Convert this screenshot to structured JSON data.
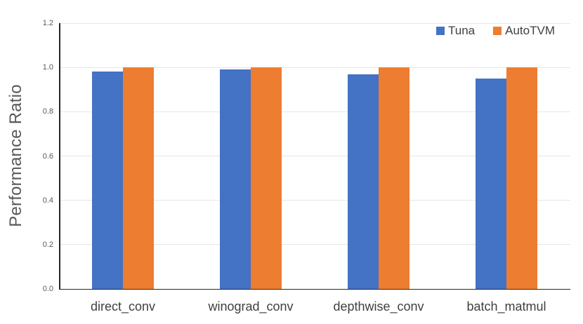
{
  "chart_data": {
    "type": "bar",
    "categories": [
      "direct_conv",
      "winograd_conv",
      "depthwise_conv",
      "batch_matmul"
    ],
    "series": [
      {
        "name": "Tuna",
        "color": "#4472C4",
        "values": [
          0.98,
          0.99,
          0.97,
          0.95
        ]
      },
      {
        "name": "AutoTVM",
        "color": "#ED7D31",
        "values": [
          1.0,
          1.0,
          1.0,
          1.0
        ]
      }
    ],
    "title": "",
    "xlabel": "",
    "ylabel": "Performance Ratio",
    "ylim": [
      0,
      1.2
    ],
    "ytick_step": 0.2,
    "ytick_labels": [
      "0.0",
      "0.2",
      "0.4",
      "0.6",
      "0.8",
      "1.0",
      "1.2"
    ],
    "grid": true,
    "legend_position": "top-right"
  },
  "colors": {
    "grid": "#E6E6E6",
    "axis": "#262626",
    "tick_label": "#595959",
    "category_label": "#404040",
    "legend_text": "#404040",
    "axis_title": "#595959",
    "background": "#FFFFFF"
  }
}
